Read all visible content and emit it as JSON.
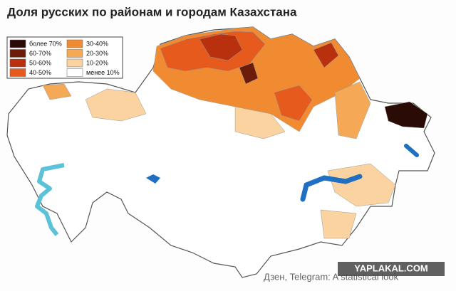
{
  "title": "Доля русских по районам и городам Казахстана",
  "legend": {
    "items": [
      {
        "label": "более 70%",
        "color": "#2b0b06"
      },
      {
        "label": "60-70%",
        "color": "#6e1c0a"
      },
      {
        "label": "50-60%",
        "color": "#b9300e"
      },
      {
        "label": "40-50%",
        "color": "#e65a1e"
      },
      {
        "label": "30-40%",
        "color": "#f08b32"
      },
      {
        "label": "20-30%",
        "color": "#f5a957"
      },
      {
        "label": "10-20%",
        "color": "#fbd3a0"
      },
      {
        "label": "менее 10%",
        "color": "#ffffff"
      }
    ]
  },
  "credits": {
    "source": "Дзен, Telegram: A statistical look",
    "watermark": "YAPLAKAL.COM"
  }
}
